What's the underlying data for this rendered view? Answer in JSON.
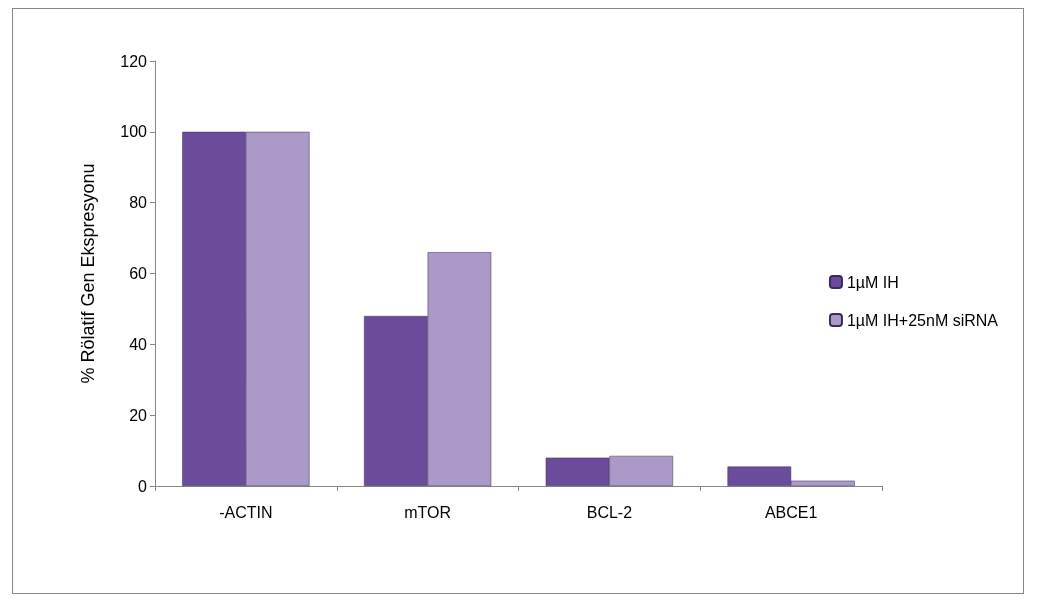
{
  "chart_data": {
    "type": "bar",
    "ylabel": "% Rölatif Gen Ekspresyonu",
    "categories": [
      "-ACTIN",
      "mTOR",
      "BCL-2",
      "ABCE1"
    ],
    "series": [
      {
        "name": "1µM IH",
        "color": "#6b4c9a",
        "values": [
          100,
          48,
          8,
          5.5
        ]
      },
      {
        "name": "1µM IH+25nM siRNA",
        "color": "#ab9ac8",
        "values": [
          100,
          66,
          8.5,
          1.5
        ]
      }
    ],
    "ylim": [
      0,
      120
    ],
    "yticks": [
      0,
      20,
      40,
      60,
      80,
      100,
      120
    ],
    "grid": false,
    "legend": "right"
  }
}
